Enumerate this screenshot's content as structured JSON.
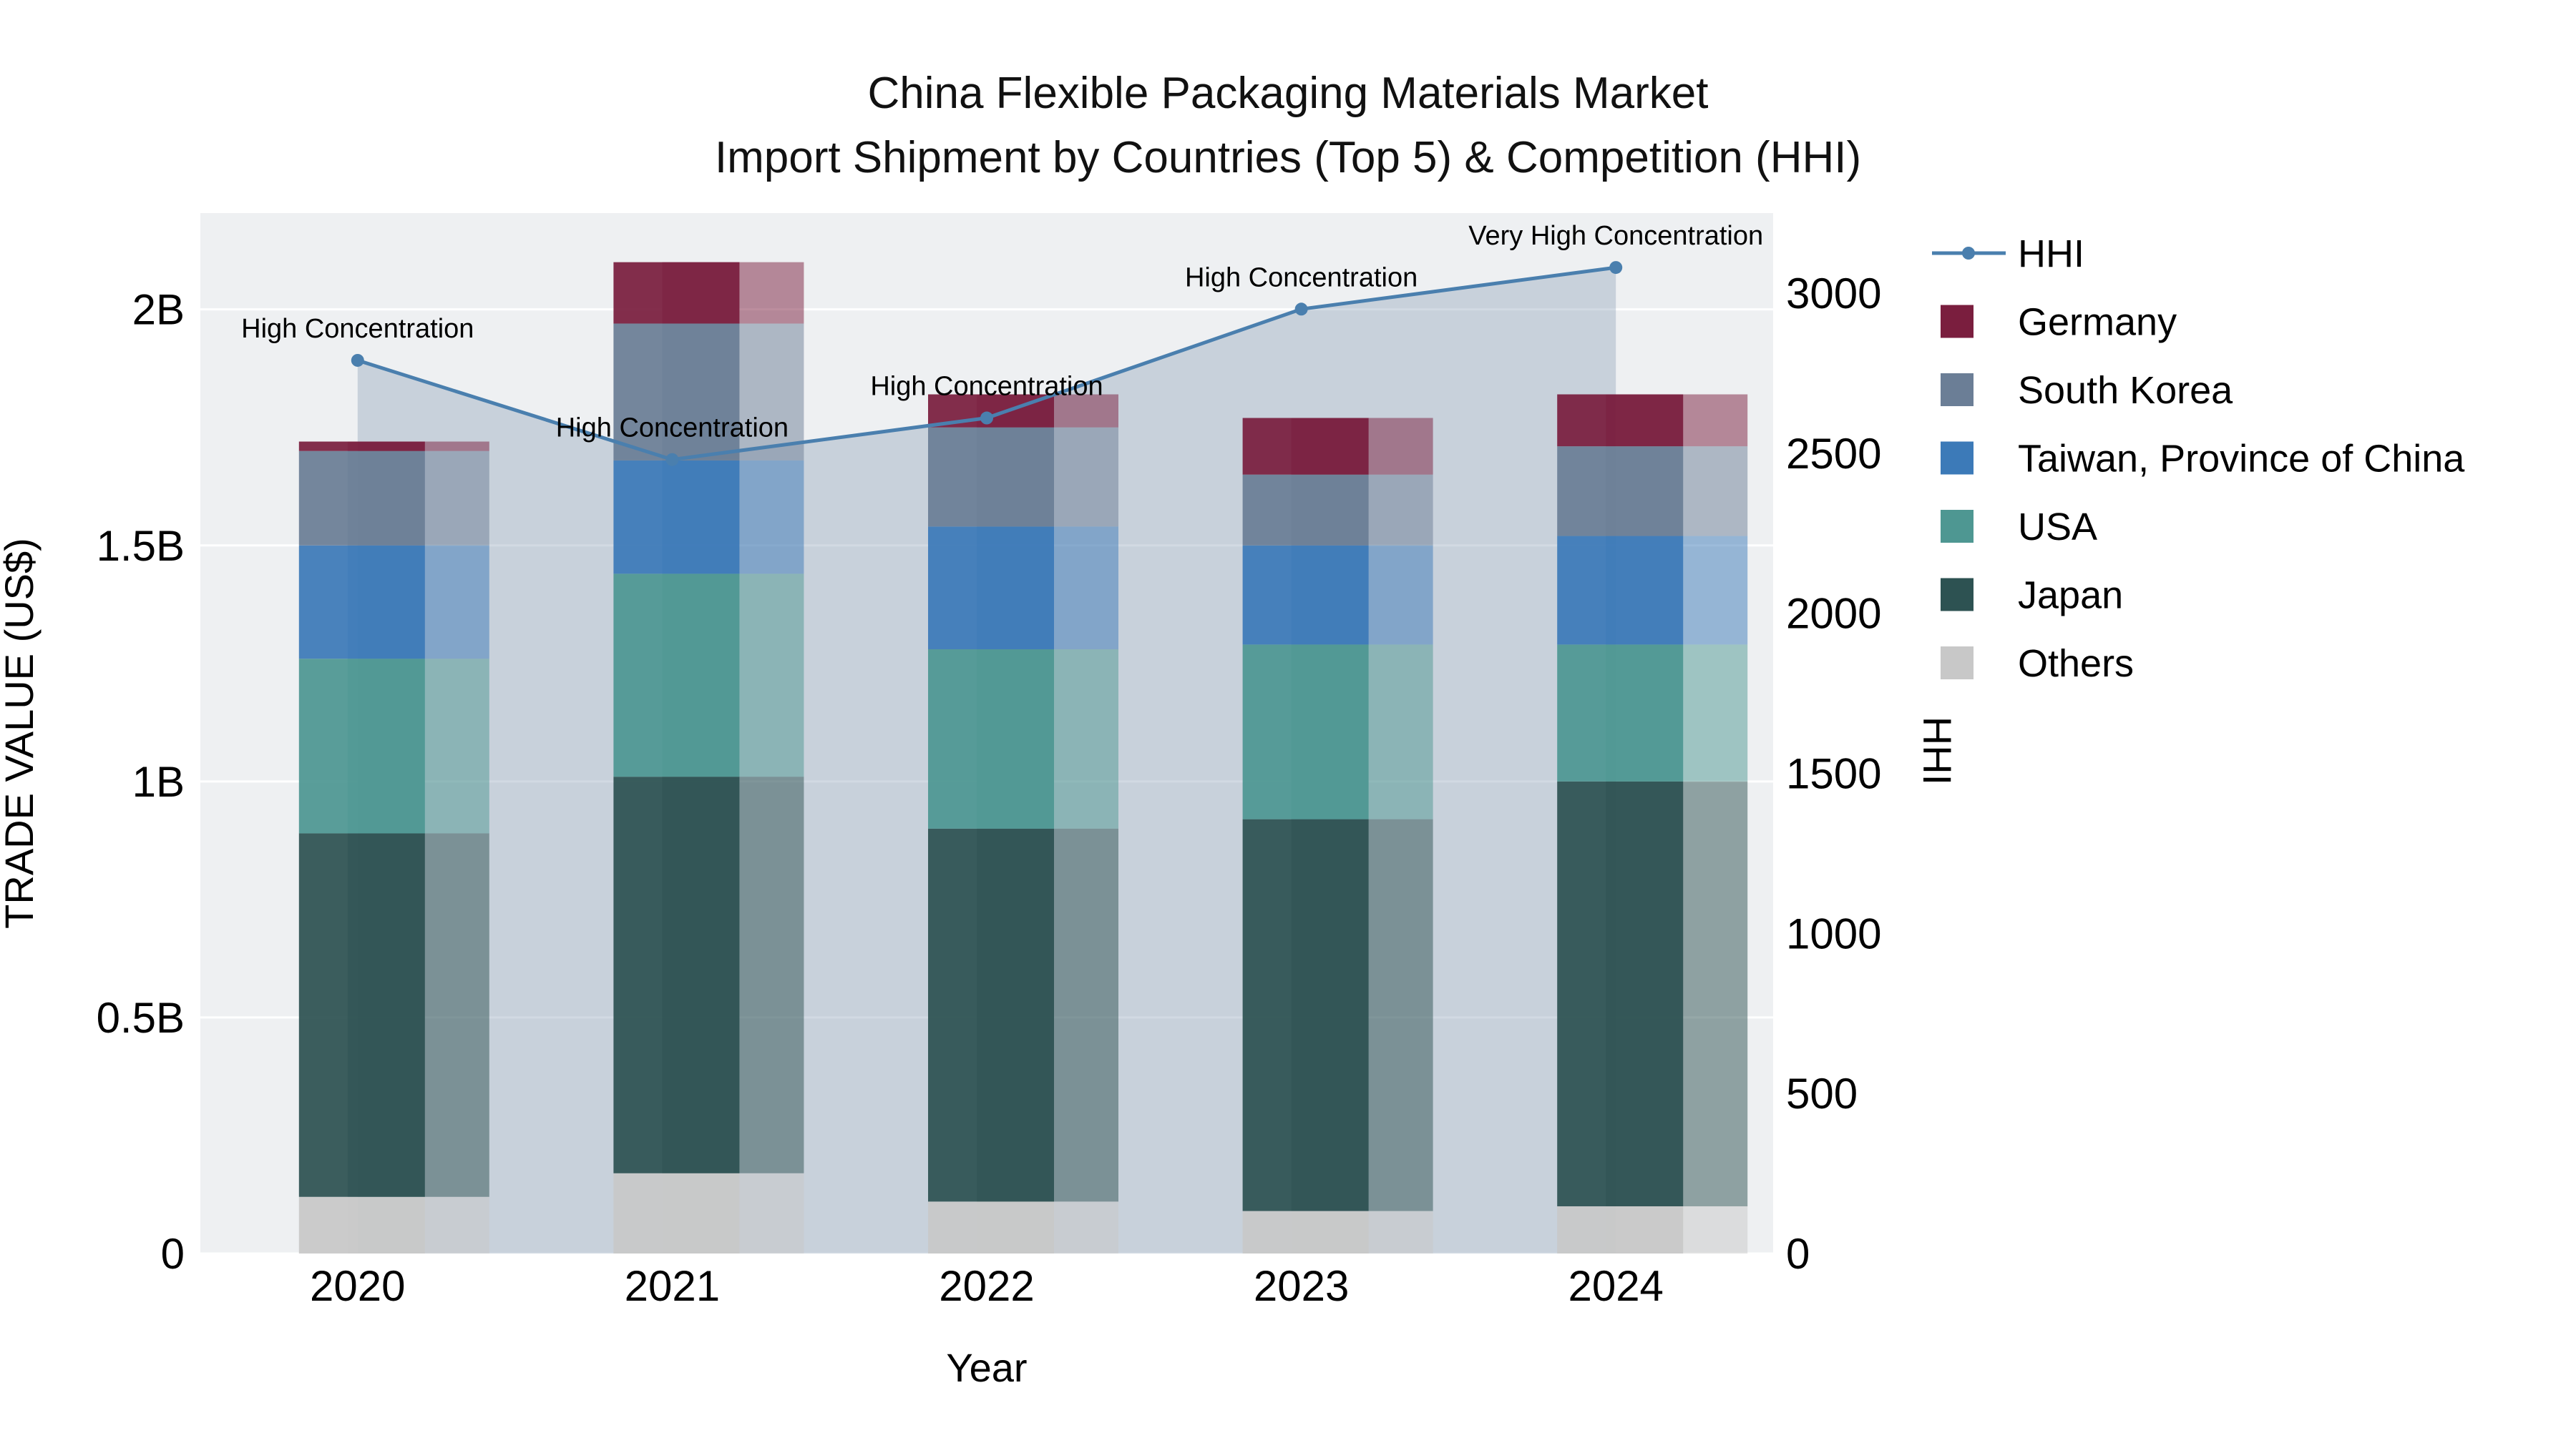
{
  "title": {
    "line1": "China Flexible Packaging Materials Market",
    "line2": "Import Shipment by Countries (Top 5) & Competition (HHI)"
  },
  "axes": {
    "x_title": "Year",
    "y_left_title": "TRADE VALUE (US$)",
    "y_right_title": "HHI",
    "y_left_max": 2.204,
    "y_right_max": 3250,
    "y_left_ticks": [
      {
        "label": "0",
        "value": 0
      },
      {
        "label": "0.5B",
        "value": 0.5
      },
      {
        "label": "1B",
        "value": 1
      },
      {
        "label": "1.5B",
        "value": 1.5
      },
      {
        "label": "2B",
        "value": 2
      }
    ],
    "y_right_ticks": [
      {
        "label": "0",
        "value": 0
      },
      {
        "label": "500",
        "value": 500
      },
      {
        "label": "1000",
        "value": 1000
      },
      {
        "label": "1500",
        "value": 1500
      },
      {
        "label": "2000",
        "value": 2000
      },
      {
        "label": "2500",
        "value": 2500
      },
      {
        "label": "3000",
        "value": 3000
      }
    ]
  },
  "chart_data": {
    "type": "bar",
    "subtype": "stacked-bar-with-line-overlay",
    "categories": [
      "2020",
      "2021",
      "2022",
      "2023",
      "2024"
    ],
    "stack_order_bottom_to_top": [
      "Others",
      "Japan",
      "USA",
      "Taiwan, Province of China",
      "South Korea",
      "Germany"
    ],
    "series": [
      {
        "name": "Others",
        "color": "#c8c8c8",
        "values": [
          0.12,
          0.17,
          0.11,
          0.09,
          0.1
        ]
      },
      {
        "name": "Japan",
        "color": "#2d5252",
        "values": [
          0.77,
          0.84,
          0.79,
          0.83,
          0.9
        ]
      },
      {
        "name": "USA",
        "color": "#4e9792",
        "values": [
          0.37,
          0.43,
          0.38,
          0.37,
          0.29
        ]
      },
      {
        "name": "Taiwan, Province of China",
        "color": "#3c7ab8",
        "values": [
          0.24,
          0.24,
          0.26,
          0.21,
          0.23
        ]
      },
      {
        "name": "South Korea",
        "color": "#6b7e96",
        "values": [
          0.2,
          0.29,
          0.21,
          0.15,
          0.19
        ]
      },
      {
        "name": "Germany",
        "color": "#7a1e3e",
        "values": [
          0.02,
          0.13,
          0.07,
          0.12,
          0.11
        ]
      }
    ],
    "bar_totals": [
      1.72,
      2.1,
      1.82,
      1.77,
      1.82
    ],
    "hhi": {
      "name": "HHI",
      "color": "#4a7fae",
      "values": [
        2790,
        2480,
        2610,
        2950,
        3080
      ],
      "annotations": [
        "High Concentration",
        "High Concentration",
        "High Concentration",
        "High Concentration",
        "Very High Concentration"
      ]
    },
    "ylabel_left": "TRADE VALUE (US$)",
    "ylabel_right": "HHI",
    "xlabel": "Year",
    "ylim_left": [
      0,
      2.2
    ],
    "ylim_right": [
      0,
      3250
    ],
    "grid": true,
    "legend_position": "right"
  },
  "legend": {
    "items": [
      {
        "label": "HHI",
        "type": "line",
        "color": "#4a7fae"
      },
      {
        "label": "Germany",
        "type": "swatch",
        "color": "#7a1e3e"
      },
      {
        "label": "South Korea",
        "type": "swatch",
        "color": "#6b7e96"
      },
      {
        "label": "Taiwan, Province of China",
        "type": "swatch",
        "color": "#3c7ab8"
      },
      {
        "label": "USA",
        "type": "swatch",
        "color": "#4e9792"
      },
      {
        "label": "Japan",
        "type": "swatch",
        "color": "#2d5252"
      },
      {
        "label": "Others",
        "type": "swatch",
        "color": "#c8c8c8"
      }
    ]
  },
  "style": {
    "plot_bg": "#eef0f2",
    "grid_color": "#ffffff",
    "hhi_area_fill": "#8fa3b8",
    "hhi_area_opacity": 0.4,
    "ghost_bar_opacity": 0.5,
    "bar_opacity": 0.93,
    "text_color": "#111111"
  }
}
